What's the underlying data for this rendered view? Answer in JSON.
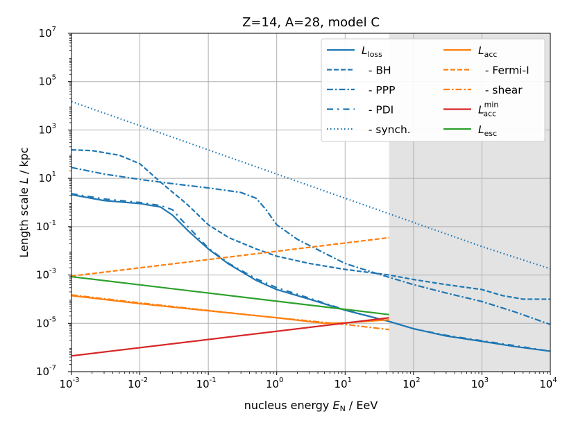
{
  "chart_data": {
    "type": "line",
    "title": "Z=14, A=28, model C",
    "xlabel": {
      "pre": "nucleus energy ",
      "var": "E",
      "sub": "N",
      "post": " / EeV"
    },
    "ylabel": {
      "pre": "Length scale ",
      "var": "L",
      "post": " / kpc"
    },
    "xscale": "log",
    "yscale": "log",
    "xlim": [
      0.001,
      10000
    ],
    "ylim": [
      1e-07,
      10000000.0
    ],
    "grid": true,
    "legend_position": "top-right",
    "x_ticks": [
      {
        "exp": "-3"
      },
      {
        "exp": "-2"
      },
      {
        "exp": "-1"
      },
      {
        "exp": "0"
      },
      {
        "exp": "1"
      },
      {
        "exp": "2"
      },
      {
        "exp": "3"
      },
      {
        "exp": "4"
      }
    ],
    "y_ticks": [
      {
        "exp": "-7"
      },
      {
        "exp": "-5"
      },
      {
        "exp": "-3"
      },
      {
        "exp": "-1"
      },
      {
        "exp": "1"
      },
      {
        "exp": "3"
      },
      {
        "exp": "5"
      },
      {
        "exp": "7"
      }
    ],
    "shaded_region": {
      "x_from": 44,
      "x_to": 10000,
      "color": "#e3e3e3"
    },
    "series": [
      {
        "key": "loss",
        "label": {
          "var": "L",
          "sub": "loss"
        },
        "color": "#1f77b4",
        "style": "solid",
        "points": [
          [
            0.001,
            2.1
          ],
          [
            0.003,
            1.2
          ],
          [
            0.01,
            0.9
          ],
          [
            0.02,
            0.65
          ],
          [
            0.03,
            0.3
          ],
          [
            0.05,
            0.07
          ],
          [
            0.1,
            0.012
          ],
          [
            0.2,
            0.0028
          ],
          [
            0.5,
            0.0006
          ],
          [
            1,
            0.00025
          ],
          [
            3,
            0.0001
          ],
          [
            10,
            3.5e-05
          ],
          [
            44,
            1.2e-05
          ],
          [
            100,
            6e-06
          ],
          [
            300,
            3e-06
          ],
          [
            1000,
            1.8e-06
          ],
          [
            3000,
            1.1e-06
          ],
          [
            10000,
            7e-07
          ]
        ]
      },
      {
        "key": "bh",
        "label": {
          "text": "  - BH"
        },
        "color": "#1f77b4",
        "style": "dashed",
        "points": [
          [
            0.001,
            150
          ],
          [
            0.002,
            140
          ],
          [
            0.005,
            90
          ],
          [
            0.01,
            40
          ],
          [
            0.02,
            7
          ],
          [
            0.05,
            0.8
          ],
          [
            0.1,
            0.12
          ],
          [
            0.2,
            0.035
          ],
          [
            0.5,
            0.012
          ],
          [
            1,
            0.006
          ],
          [
            3,
            0.003
          ],
          [
            10,
            0.0017
          ],
          [
            44,
            0.001
          ],
          [
            100,
            0.00065
          ],
          [
            300,
            0.0004
          ],
          [
            1000,
            0.00025
          ],
          [
            2000,
            0.00014
          ],
          [
            4000,
            0.0001
          ],
          [
            10000,
            0.0001
          ]
        ]
      },
      {
        "key": "ppp",
        "label": {
          "text": "  - PPP"
        },
        "color": "#1f77b4",
        "style": "dashdot",
        "points": [
          [
            0.001,
            28
          ],
          [
            0.003,
            15
          ],
          [
            0.01,
            9
          ],
          [
            0.03,
            6
          ],
          [
            0.1,
            4
          ],
          [
            0.3,
            2.6
          ],
          [
            0.5,
            1.5
          ],
          [
            0.7,
            0.5
          ],
          [
            1,
            0.12
          ],
          [
            2,
            0.03
          ],
          [
            5,
            0.008
          ],
          [
            10,
            0.003
          ],
          [
            20,
            0.0016
          ],
          [
            44,
            0.0008
          ],
          [
            100,
            0.0004
          ],
          [
            300,
            0.00018
          ],
          [
            1000,
            8e-05
          ],
          [
            3000,
            3e-05
          ],
          [
            10000,
            9e-06
          ]
        ]
      },
      {
        "key": "pdi",
        "label": {
          "text": "  - PDI"
        },
        "color": "#1f77b4",
        "style": "loosedashdot",
        "points": [
          [
            0.001,
            2.3
          ],
          [
            0.003,
            1.4
          ],
          [
            0.01,
            1.0
          ],
          [
            0.02,
            0.75
          ],
          [
            0.03,
            0.5
          ],
          [
            0.04,
            0.2
          ],
          [
            0.06,
            0.06
          ],
          [
            0.1,
            0.013
          ],
          [
            0.2,
            0.003
          ],
          [
            0.5,
            0.0007
          ],
          [
            1,
            0.0003
          ],
          [
            3,
            0.00011
          ],
          [
            10,
            3.6e-05
          ],
          [
            44,
            1.2e-05
          ],
          [
            100,
            6e-06
          ],
          [
            300,
            3.2e-06
          ],
          [
            1000,
            1.9e-06
          ],
          [
            3000,
            1.2e-06
          ],
          [
            10000,
            7e-07
          ]
        ]
      },
      {
        "key": "synch",
        "label": {
          "text": "  - synch."
        },
        "color": "#1f77b4",
        "style": "dotted",
        "points": [
          [
            0.001,
            15000
          ],
          [
            0.01,
            1500
          ],
          [
            0.1,
            150
          ],
          [
            1,
            15
          ],
          [
            10,
            1.5
          ],
          [
            100,
            0.15
          ],
          [
            1000,
            0.015
          ],
          [
            10000,
            0.0018
          ]
        ]
      },
      {
        "key": "acc",
        "label": {
          "var": "L",
          "sub": "acc"
        },
        "color": "#ff7f0e",
        "style": "solid",
        "points": [
          [
            0.001,
            0.00014
          ],
          [
            0.01,
            6.5e-05
          ],
          [
            0.1,
            3.3e-05
          ],
          [
            1,
            1.7e-05
          ],
          [
            5,
            1e-05
          ],
          [
            10,
            1.05e-05
          ],
          [
            44,
            1.4e-05
          ]
        ]
      },
      {
        "key": "fermi",
        "label": {
          "text": "  - Fermi-I"
        },
        "color": "#ff7f0e",
        "style": "dashed",
        "points": [
          [
            0.001,
            0.0009
          ],
          [
            44,
            0.035
          ]
        ]
      },
      {
        "key": "shear",
        "label": {
          "text": "  - shear"
        },
        "color": "#ff7f0e",
        "style": "dashdot",
        "points": [
          [
            0.001,
            0.00015
          ],
          [
            0.01,
            7e-05
          ],
          [
            0.1,
            3.4e-05
          ],
          [
            1,
            1.7e-05
          ],
          [
            10,
            9e-06
          ],
          [
            44,
            5.5e-06
          ]
        ]
      },
      {
        "key": "accmin",
        "label": {
          "var": "L",
          "sub": "acc",
          "sup": "min"
        },
        "color": "#d62728",
        "style": "solid",
        "points": [
          [
            0.001,
            4.5e-07
          ],
          [
            44,
            1.7e-05
          ]
        ]
      },
      {
        "key": "esc",
        "label": {
          "var": "L",
          "sub": "esc"
        },
        "color": "#2ca02c",
        "style": "solid",
        "points": [
          [
            0.001,
            0.00085
          ],
          [
            44,
            2.3e-05
          ]
        ]
      }
    ]
  }
}
